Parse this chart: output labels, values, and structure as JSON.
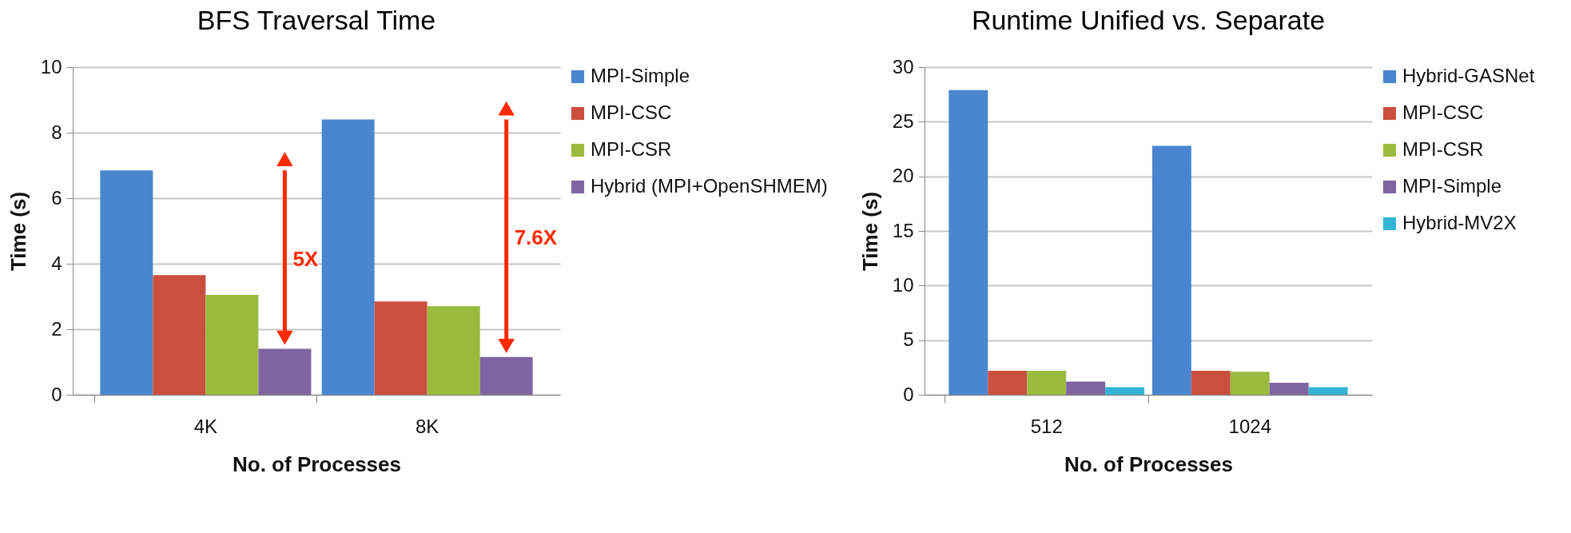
{
  "chart_data": [
    {
      "type": "bar",
      "title": "BFS Traversal Time",
      "xlabel": "No. of Processes",
      "ylabel": "Time (s)",
      "categories": [
        "4K",
        "8K"
      ],
      "series": [
        {
          "name": "MPI-Simple",
          "color": "#4a86d0",
          "values": [
            6.85,
            8.4
          ]
        },
        {
          "name": "MPI-CSC",
          "color": "#cb4f3f",
          "values": [
            3.65,
            2.85
          ]
        },
        {
          "name": "MPI-CSR",
          "color": "#9bbb3f",
          "values": [
            3.05,
            2.7
          ]
        },
        {
          "name": "Hybrid (MPI+OpenSHMEM)",
          "color": "#8064a2",
          "values": [
            1.4,
            1.15
          ]
        }
      ],
      "ylim": [
        0,
        10
      ],
      "yticks": [
        0,
        2,
        4,
        6,
        8,
        10
      ],
      "grid": "y",
      "legend": "right",
      "annotations": [
        "5X",
        "7.6X"
      ]
    },
    {
      "type": "bar",
      "title": "Runtime Unified vs. Separate",
      "xlabel": "No. of Processes",
      "ylabel": "Time (s)",
      "categories": [
        "512",
        "1024"
      ],
      "series": [
        {
          "name": "Hybrid-GASNet",
          "color": "#4a86d0",
          "values": [
            27.9,
            22.8
          ]
        },
        {
          "name": "MPI-CSC",
          "color": "#cb4f3f",
          "values": [
            2.2,
            2.2
          ]
        },
        {
          "name": "MPI-CSR",
          "color": "#9bbb3f",
          "values": [
            2.2,
            2.1
          ]
        },
        {
          "name": "MPI-Simple",
          "color": "#8064a2",
          "values": [
            1.2,
            1.1
          ]
        },
        {
          "name": "Hybrid-MV2X",
          "color": "#34b4d4",
          "values": [
            0.7,
            0.7
          ]
        }
      ],
      "ylim": [
        0,
        30
      ],
      "yticks": [
        0,
        5,
        10,
        15,
        20,
        25,
        30
      ],
      "grid": "y",
      "legend": "right"
    }
  ]
}
